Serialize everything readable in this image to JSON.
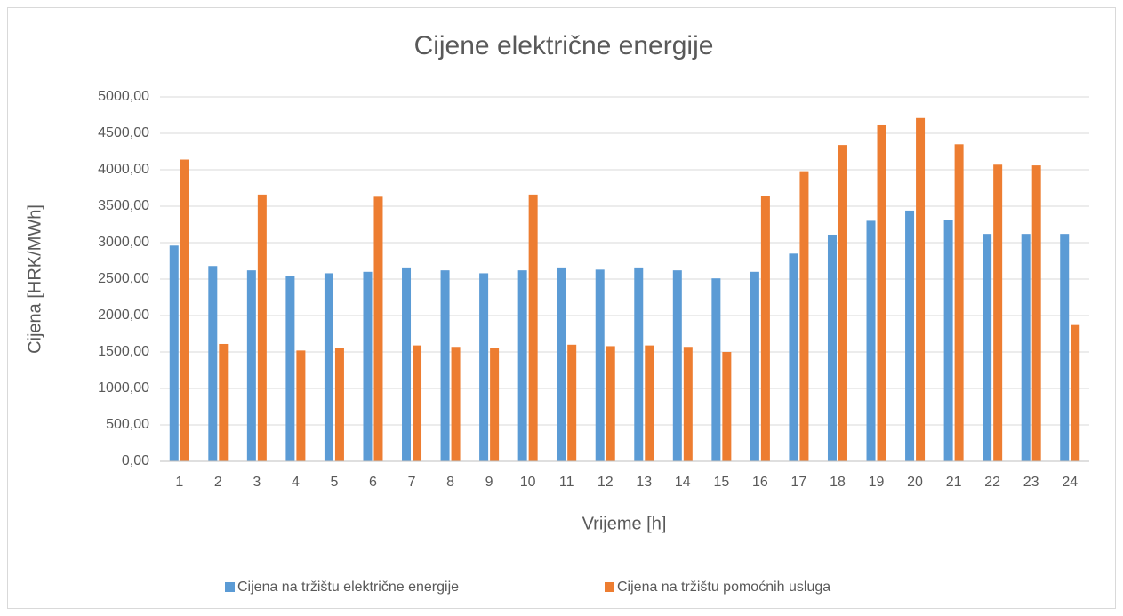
{
  "chart_data": {
    "type": "bar",
    "title": "Cijene električne energije",
    "x_label": "Vrijeme [h]",
    "y_label": "Cijena [HRK/MWh]",
    "categories": [
      "1",
      "2",
      "3",
      "4",
      "5",
      "6",
      "7",
      "8",
      "9",
      "10",
      "11",
      "12",
      "13",
      "14",
      "15",
      "16",
      "17",
      "18",
      "19",
      "20",
      "21",
      "22",
      "23",
      "24"
    ],
    "series": [
      {
        "name": "Cijena na tržištu električne energije",
        "color": "#5b9bd5",
        "values": [
          2960,
          2680,
          2620,
          2540,
          2580,
          2600,
          2660,
          2620,
          2580,
          2620,
          2660,
          2630,
          2660,
          2620,
          2510,
          2600,
          2850,
          3110,
          3300,
          3440,
          3310,
          3120,
          3120,
          3120
        ]
      },
      {
        "name": "Cijena na tržištu pomoćnih usluga",
        "color": "#ed7d31",
        "values": [
          4140,
          1610,
          3660,
          1520,
          1550,
          3630,
          1590,
          1570,
          1550,
          3660,
          1600,
          1580,
          1590,
          1570,
          1500,
          3640,
          3980,
          4340,
          4610,
          4710,
          4350,
          4070,
          4060,
          1870
        ]
      }
    ],
    "ylim": [
      0,
      5000
    ],
    "yticks": [
      {
        "value": 0,
        "label": "0,00"
      },
      {
        "value": 500,
        "label": "500,00"
      },
      {
        "value": 1000,
        "label": "1000,00"
      },
      {
        "value": 1500,
        "label": "1500,00"
      },
      {
        "value": 2000,
        "label": "2000,00"
      },
      {
        "value": 2500,
        "label": "2500,00"
      },
      {
        "value": 3000,
        "label": "3000,00"
      },
      {
        "value": 3500,
        "label": "3500,00"
      },
      {
        "value": 4000,
        "label": "4000,00"
      },
      {
        "value": 4500,
        "label": "4500,00"
      },
      {
        "value": 5000,
        "label": "5000,00"
      }
    ],
    "grid": true,
    "legend": "bottom"
  }
}
